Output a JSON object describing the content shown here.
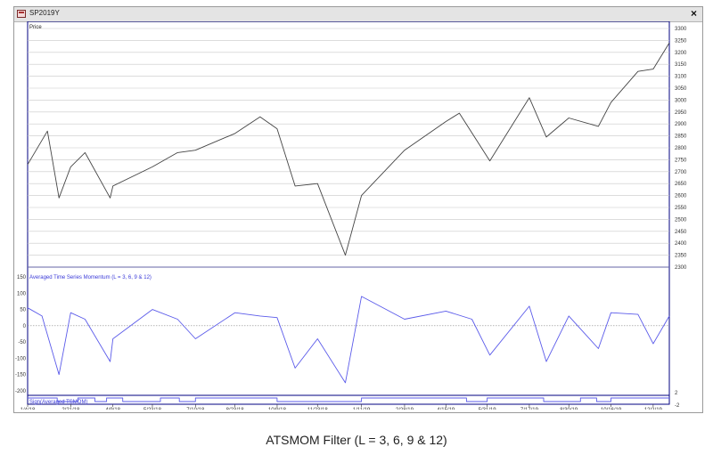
{
  "window": {
    "title": "SP2019Y",
    "close_label": "×"
  },
  "caption": "ATSMOM Filter (L = 3, 6, 9 & 12)",
  "colors": {
    "price_line": "#444444",
    "indicator_line": "#5b5bea",
    "frame": "#000080",
    "grid": "#c8c8c8",
    "zero_line": "#8a8a8a"
  },
  "chart_data": {
    "type": "line",
    "x_ticks": [
      "1/4/18",
      "2/21/18",
      "4/9/18",
      "5/23/18",
      "7/10/18",
      "8/23/18",
      "10/9/18",
      "11/23/18",
      "1/11/19",
      "2/28/19",
      "4/15/19",
      "5/31/19",
      "7/17/19",
      "8/30/19",
      "10/16/19",
      "12/2/19"
    ],
    "x_range": [
      "1/4/18",
      "12/20/19"
    ],
    "panels": [
      {
        "name": "price",
        "label": "Price",
        "ylim": [
          2300,
          3300
        ],
        "y_ticks": [
          "3300",
          "3250",
          "3200",
          "3150",
          "3100",
          "3050",
          "3000",
          "2950",
          "2900",
          "2850",
          "2800",
          "2750",
          "2700",
          "2650",
          "2600",
          "2550",
          "2500",
          "2450",
          "2400",
          "2350",
          "2300"
        ],
        "series": [
          {
            "x": [
              "1/4/18",
              "1/26/18",
              "2/8/18",
              "2/21/18",
              "3/9/18",
              "4/6/18",
              "4/9/18",
              "5/23/18",
              "6/20/18",
              "7/10/18",
              "8/23/18",
              "9/20/18",
              "10/9/18",
              "10/29/18",
              "11/23/18",
              "12/24/18",
              "1/11/19",
              "2/28/19",
              "4/15/19",
              "4/30/19",
              "6/3/19",
              "7/17/19",
              "8/5/19",
              "8/30/19",
              "10/2/19",
              "10/16/19",
              "11/15/19",
              "12/2/19",
              "12/20/19"
            ],
            "y": [
              2730,
              2870,
              2590,
              2720,
              2780,
              2590,
              2640,
              2720,
              2780,
              2790,
              2860,
              2930,
              2880,
              2640,
              2650,
              2350,
              2600,
              2790,
              2910,
              2945,
              2745,
              3010,
              2845,
              2925,
              2890,
              2990,
              3120,
              3130,
              3240
            ]
          }
        ]
      },
      {
        "name": "atsmom",
        "label": "Averaged Time Series Momentum (L = 3, 6, 9 & 12)",
        "ylim": [
          -200,
          150
        ],
        "y_ticks": [
          "150",
          "100",
          "50",
          "0",
          "-50",
          "-100",
          "-150",
          "-200"
        ],
        "series": [
          {
            "x": [
              "1/4/18",
              "1/20/18",
              "2/8/18",
              "2/21/18",
              "3/9/18",
              "4/6/18",
              "4/9/18",
              "5/23/18",
              "6/20/18",
              "7/10/18",
              "8/23/18",
              "9/20/18",
              "10/9/18",
              "10/29/18",
              "11/23/18",
              "12/24/18",
              "1/11/19",
              "2/28/19",
              "4/15/19",
              "5/14/19",
              "6/3/19",
              "7/17/19",
              "8/5/19",
              "8/30/19",
              "10/2/19",
              "10/16/19",
              "11/15/19",
              "12/2/19",
              "12/20/19"
            ],
            "y": [
              55,
              30,
              -150,
              40,
              20,
              -110,
              -40,
              50,
              20,
              -40,
              40,
              30,
              25,
              -130,
              -40,
              -175,
              90,
              20,
              45,
              20,
              -90,
              60,
              -110,
              30,
              -70,
              40,
              35,
              -55,
              30
            ]
          }
        ]
      },
      {
        "name": "sign",
        "label": "Sign(Averaged TSMOM)",
        "ylim": [
          -2,
          2
        ],
        "y_ticks": [
          "2",
          "-2"
        ],
        "series": [
          {
            "x": [
              "1/4/18",
              "1/20/18",
              "2/6/18",
              "3/1/18",
              "3/20/18",
              "4/2/18",
              "4/20/18",
              "6/1/18",
              "6/22/18",
              "7/10/18",
              "9/25/18",
              "10/9/18",
              "12/1/18",
              "12/30/18",
              "1/11/19",
              "4/20/19",
              "5/8/19",
              "5/31/19",
              "7/17/19",
              "8/2/19",
              "9/12/19",
              "9/30/19",
              "10/16/19",
              "12/20/19"
            ],
            "y": [
              1,
              1,
              -1,
              1,
              -1,
              1,
              -1,
              1,
              -1,
              1,
              1,
              -1,
              -1,
              -1,
              1,
              1,
              -1,
              1,
              1,
              -1,
              1,
              -1,
              1,
              1
            ]
          }
        ]
      }
    ],
    "grid": true
  }
}
